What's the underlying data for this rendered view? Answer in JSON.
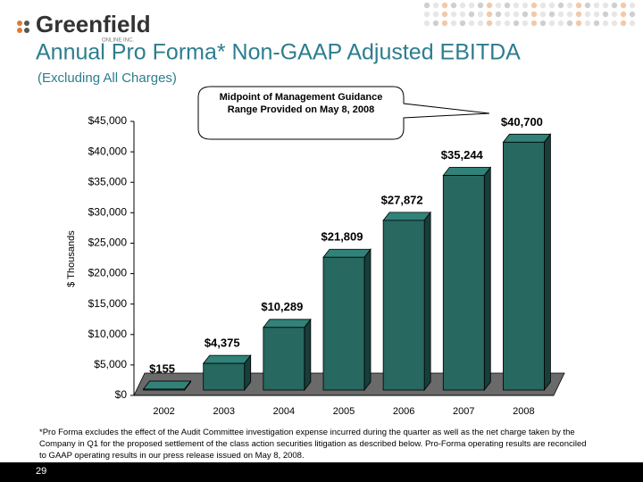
{
  "logo": {
    "name": "Greenfield",
    "tagline": "ONLINE INC."
  },
  "chart_data": {
    "type": "bar3d",
    "title": "Annual Pro Forma* Non-GAAP Adjusted EBITDA",
    "subtitle": "(Excluding All Charges)",
    "y_label": "$ Thousands",
    "annotation": "Midpoint of Management Guidance Range Provided on May 8, 2008",
    "categories": [
      "2002",
      "2003",
      "2004",
      "2005",
      "2006",
      "2007",
      "2008"
    ],
    "values": [
      155,
      4375,
      10289,
      21809,
      27872,
      35244,
      40700
    ],
    "value_labels": [
      "$155",
      "$4,375",
      "$10,289",
      "$21,809",
      "$27,872",
      "$35,244",
      "$40,700"
    ],
    "color": "#276860",
    "ylim": [
      0,
      45000
    ],
    "yticks": [
      {
        "value": 0,
        "label": "$0"
      },
      {
        "value": 5000,
        "label": "$5,000"
      },
      {
        "value": 10000,
        "label": "$10,000"
      },
      {
        "value": 15000,
        "label": "$15,000"
      },
      {
        "value": 20000,
        "label": "$20,000"
      },
      {
        "value": 25000,
        "label": "$25,000"
      },
      {
        "value": 30000,
        "label": "$30,000"
      },
      {
        "value": 35000,
        "label": "$35,000"
      },
      {
        "value": 40000,
        "label": "$40,000"
      },
      {
        "value": 45000,
        "label": "$45,000"
      }
    ],
    "grid": false
  },
  "footnote": "*Pro Forma excludes the effect of the Audit Committee investigation expense incurred during the quarter as well as the net charge taken by the Company in Q1 for the proposed settlement of the class action securities litigation as described below. Pro-Forma operating results are reconciled to GAAP operating results in our press release issued on May 8, 2008.",
  "page_number": "29"
}
